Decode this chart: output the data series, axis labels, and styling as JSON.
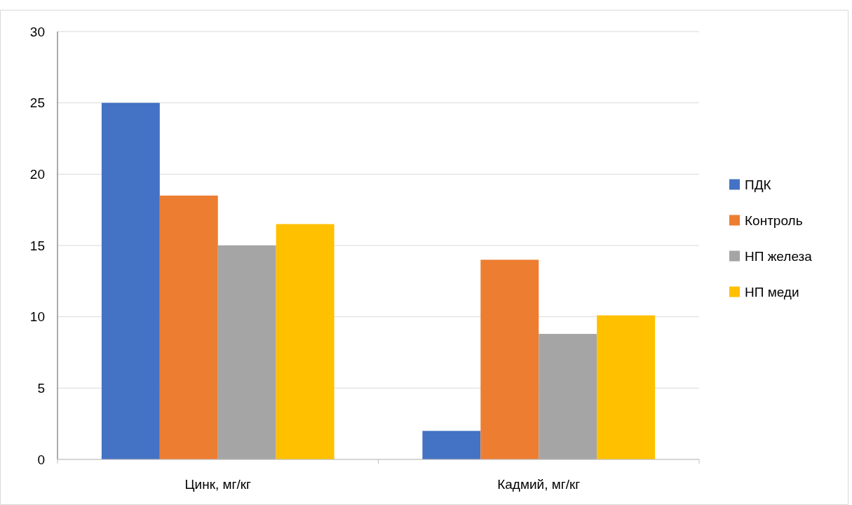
{
  "chart_data": {
    "type": "bar",
    "categories": [
      "Цинк, мг/кг",
      "Кадмий, мг/кг"
    ],
    "series": [
      {
        "name": "ПДК",
        "color": "#4472c4",
        "values": [
          25,
          2
        ]
      },
      {
        "name": "Контроль",
        "color": "#ed7d31",
        "values": [
          18.5,
          14
        ]
      },
      {
        "name": "НП железа",
        "color": "#a5a5a5",
        "values": [
          15,
          8.8
        ]
      },
      {
        "name": "НП меди",
        "color": "#ffc000",
        "values": [
          16.5,
          10.1
        ]
      }
    ],
    "ylim": [
      0,
      30
    ],
    "yticks": [
      0,
      5,
      10,
      15,
      20,
      25,
      30
    ],
    "grid": "y",
    "legend": "right"
  }
}
